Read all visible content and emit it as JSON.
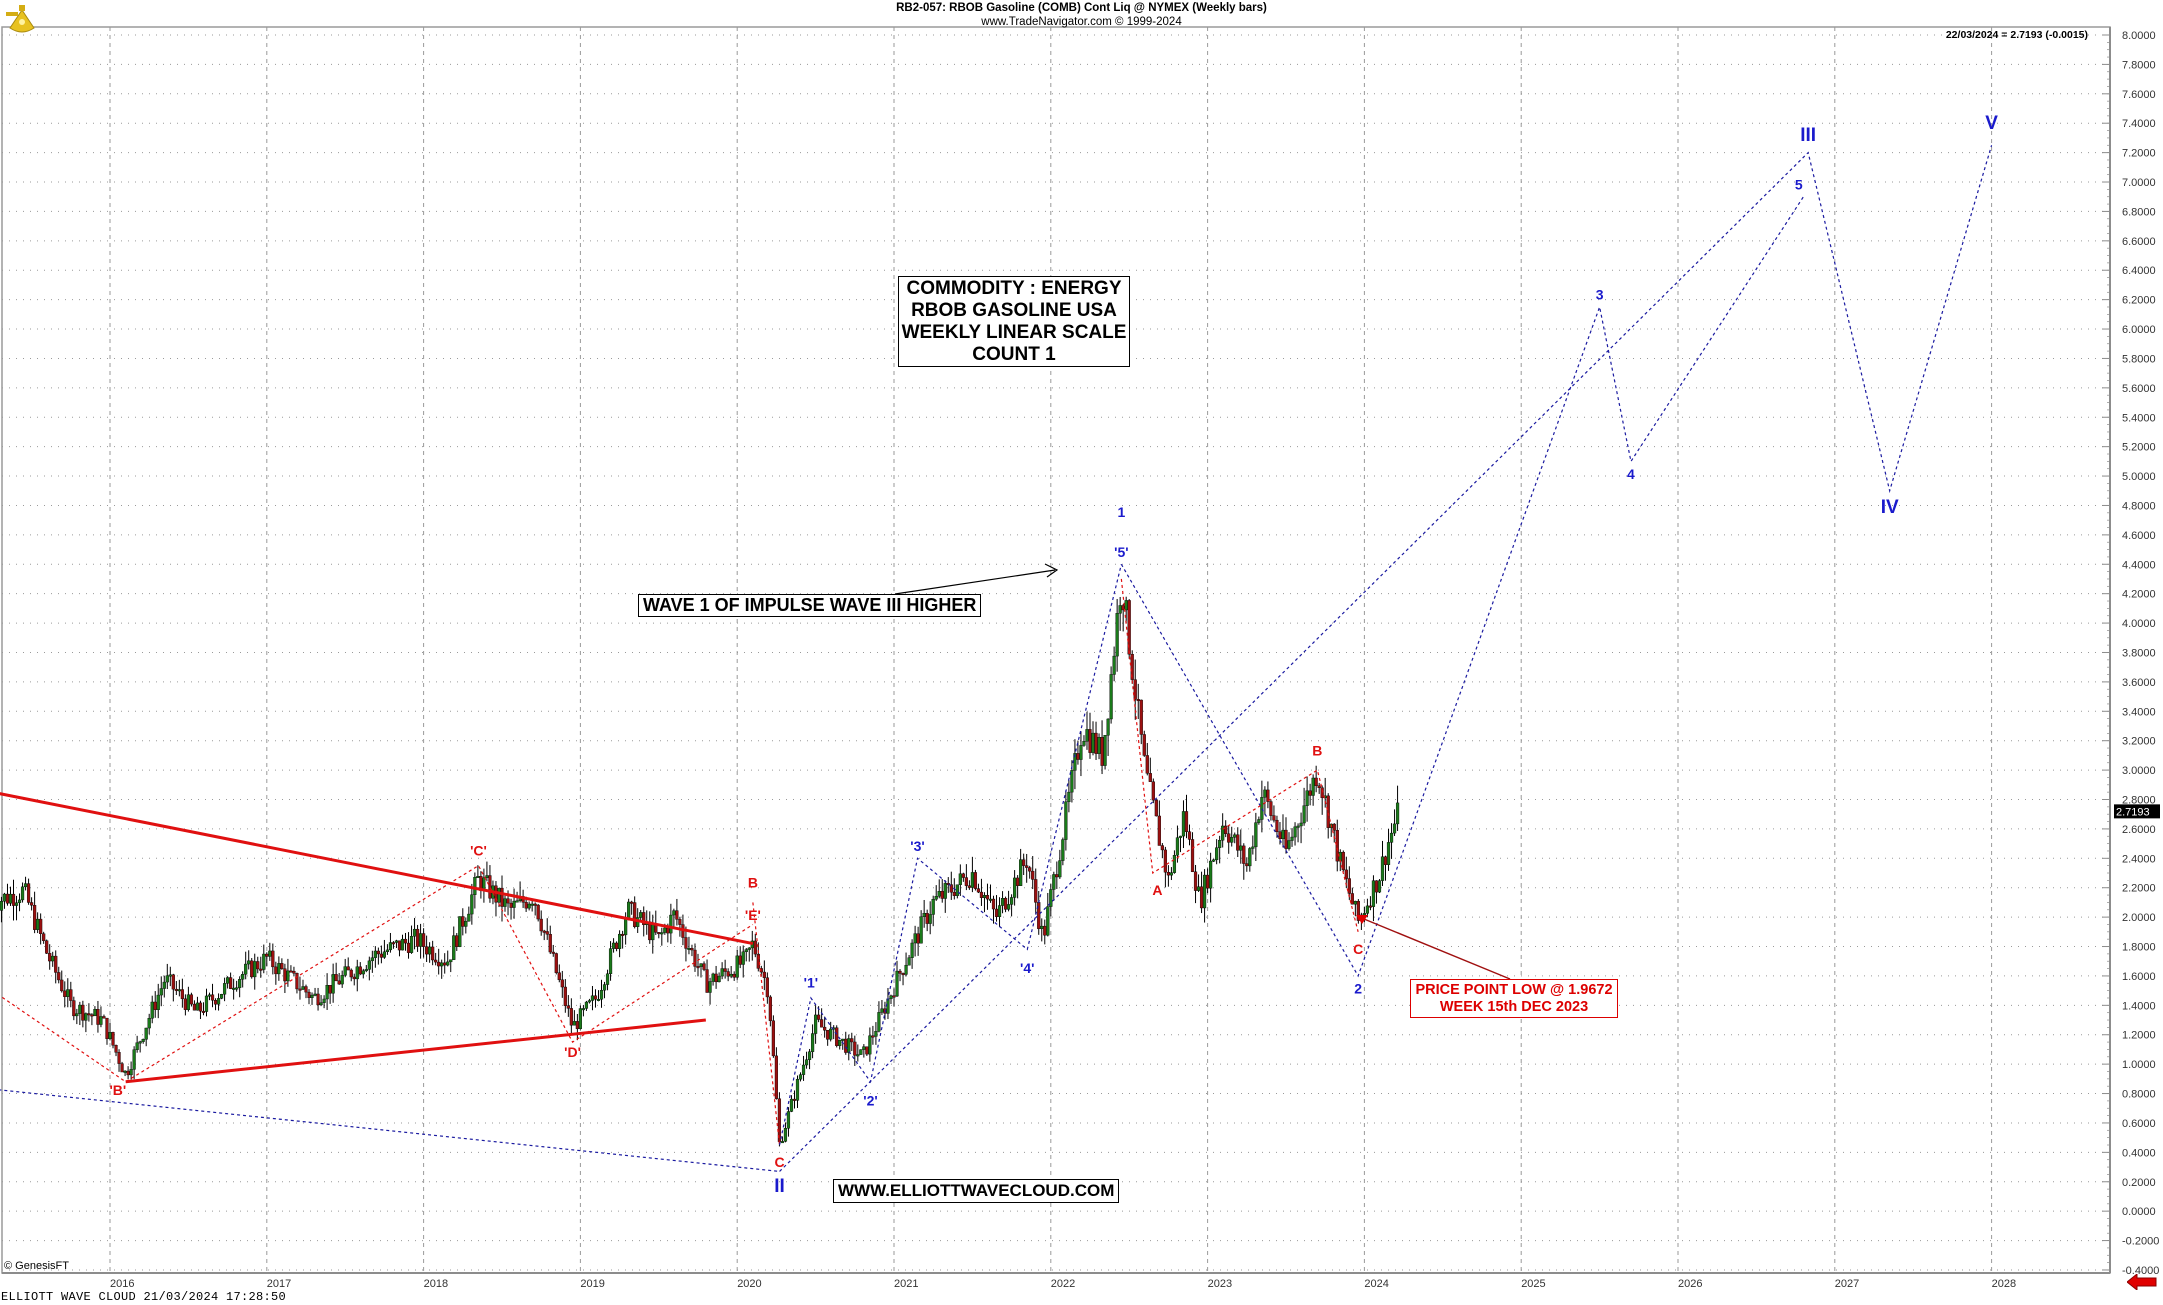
{
  "header": {
    "title": "RB2-057:  RBOB Gasoline (COMB) Cont Liq @ NYMEX  (Weekly bars)",
    "subtitle": "www.TradeNavigator.com © 1999-2024",
    "last_price_caption": "22/03/2024 = 2.7193 (-0.0015)"
  },
  "footer": {
    "left_text": "ELLIOTT WAVE CLOUD   21/03/2024 17:28:50",
    "copyright": "© GenesisFT"
  },
  "annotations": {
    "info_box": [
      "COMMODITY : ENERGY",
      "RBOB GASOLINE USA",
      "WEEKLY LINEAR SCALE",
      "COUNT 1"
    ],
    "wave1_note": "WAVE 1 OF IMPULSE WAVE III HIGHER",
    "website": "WWW.ELLIOTTWAVECLOUD.COM",
    "low_note": [
      "PRICE POINT LOW @ 1.9672",
      "WEEK 15th DEC 2023"
    ]
  },
  "colors": {
    "up_candle": "#1a7a1a",
    "down_candle": "#9b1010",
    "wick": "#000000",
    "red_lines": "#e01010",
    "blue_lines": "#1a1aa0",
    "blue_labels": "#1a1acc",
    "red_labels": "#e01010",
    "grid": "#9a9a9a",
    "axis": "#8c8c8c"
  },
  "chart_data": {
    "type": "candlestick",
    "title": "RB2-057:  RBOB Gasoline (COMB) Cont Liq @ NYMEX  (Weekly bars)",
    "xlabel": "",
    "ylabel": "",
    "ylim": [
      -0.4,
      8.0
    ],
    "y_ticks": [
      "8.0000",
      "7.8000",
      "7.6000",
      "7.4000",
      "7.2000",
      "7.0000",
      "6.8000",
      "6.6000",
      "6.4000",
      "6.2000",
      "6.0000",
      "5.8000",
      "5.6000",
      "5.4000",
      "5.2000",
      "5.0000",
      "4.8000",
      "4.6000",
      "4.4000",
      "4.2000",
      "4.0000",
      "3.8000",
      "3.6000",
      "3.4000",
      "3.2000",
      "3.0000",
      "2.8000",
      "2.6000",
      "2.4000",
      "2.2000",
      "2.0000",
      "1.8000",
      "1.6000",
      "1.4000",
      "1.2000",
      "1.0000",
      "0.8000",
      "0.6000",
      "0.4000",
      "0.2000",
      "0.0000",
      "-0.2000",
      "-0.4000"
    ],
    "x_ticks": [
      "2016",
      "2017",
      "2018",
      "2019",
      "2020",
      "2021",
      "2022",
      "2023",
      "2024",
      "2025",
      "2026",
      "2027",
      "2028"
    ],
    "grid": true,
    "last_price": 2.7193,
    "last_change": -0.0015,
    "last_date": "22/03/2024",
    "price_swings": [
      {
        "t": 2015.25,
        "v": 2.1
      },
      {
        "t": 2015.45,
        "v": 2.18
      },
      {
        "t": 2015.6,
        "v": 1.75
      },
      {
        "t": 2015.75,
        "v": 1.4
      },
      {
        "t": 2015.95,
        "v": 1.3
      },
      {
        "t": 2016.1,
        "v": 0.93
      },
      {
        "t": 2016.35,
        "v": 1.58
      },
      {
        "t": 2016.55,
        "v": 1.35
      },
      {
        "t": 2016.8,
        "v": 1.58
      },
      {
        "t": 2017.0,
        "v": 1.72
      },
      {
        "t": 2017.3,
        "v": 1.45
      },
      {
        "t": 2017.7,
        "v": 1.75
      },
      {
        "t": 2017.95,
        "v": 1.85
      },
      {
        "t": 2018.15,
        "v": 1.7
      },
      {
        "t": 2018.35,
        "v": 2.26
      },
      {
        "t": 2018.55,
        "v": 2.05
      },
      {
        "t": 2018.7,
        "v": 2.15
      },
      {
        "t": 2018.95,
        "v": 1.25
      },
      {
        "t": 2019.1,
        "v": 1.45
      },
      {
        "t": 2019.3,
        "v": 2.05
      },
      {
        "t": 2019.5,
        "v": 1.85
      },
      {
        "t": 2019.6,
        "v": 2.02
      },
      {
        "t": 2019.8,
        "v": 1.55
      },
      {
        "t": 2020.05,
        "v": 1.7
      },
      {
        "t": 2020.1,
        "v": 1.82
      },
      {
        "t": 2020.2,
        "v": 1.5
      },
      {
        "t": 2020.27,
        "v": 0.45
      },
      {
        "t": 2020.5,
        "v": 1.28
      },
      {
        "t": 2020.8,
        "v": 1.05
      },
      {
        "t": 2021.05,
        "v": 1.65
      },
      {
        "t": 2021.25,
        "v": 2.1
      },
      {
        "t": 2021.5,
        "v": 2.3
      },
      {
        "t": 2021.65,
        "v": 2.0
      },
      {
        "t": 2021.85,
        "v": 2.4
      },
      {
        "t": 2021.95,
        "v": 1.85
      },
      {
        "t": 2022.15,
        "v": 3.0
      },
      {
        "t": 2022.2,
        "v": 3.3
      },
      {
        "t": 2022.33,
        "v": 3.1
      },
      {
        "t": 2022.45,
        "v": 4.3
      },
      {
        "t": 2022.6,
        "v": 3.0
      },
      {
        "t": 2022.75,
        "v": 2.25
      },
      {
        "t": 2022.85,
        "v": 2.7
      },
      {
        "t": 2022.95,
        "v": 2.1
      },
      {
        "t": 2023.1,
        "v": 2.65
      },
      {
        "t": 2023.25,
        "v": 2.35
      },
      {
        "t": 2023.35,
        "v": 2.85
      },
      {
        "t": 2023.5,
        "v": 2.45
      },
      {
        "t": 2023.7,
        "v": 3.0
      },
      {
        "t": 2023.85,
        "v": 2.35
      },
      {
        "t": 2023.96,
        "v": 1.9672
      },
      {
        "t": 2024.1,
        "v": 2.3
      },
      {
        "t": 2024.15,
        "v": 2.5
      },
      {
        "t": 2024.22,
        "v": 2.7193
      }
    ],
    "series": [
      {
        "name": "Red contracting triangle upper line",
        "style": "solid-red",
        "points": [
          {
            "t": 2015.25,
            "v": 2.85
          },
          {
            "t": 2020.1,
            "v": 1.82
          }
        ]
      },
      {
        "name": "Red contracting triangle lower line",
        "style": "solid-red",
        "points": [
          {
            "t": 2016.1,
            "v": 0.88
          },
          {
            "t": 2019.8,
            "v": 1.3
          }
        ]
      },
      {
        "name": "Blue base channel line",
        "style": "dotted-blue",
        "points": [
          {
            "t": 2015.25,
            "v": 0.83
          },
          {
            "t": 2020.27,
            "v": 0.27
          }
        ]
      },
      {
        "name": "Red triangle internal waves",
        "style": "dotted-red",
        "points": [
          {
            "t": 2015.25,
            "v": 1.5
          },
          {
            "t": 2016.1,
            "v": 0.88
          },
          {
            "t": 2018.35,
            "v": 2.35
          },
          {
            "t": 2018.95,
            "v": 1.15
          },
          {
            "t": 2020.1,
            "v": 1.95
          }
        ]
      },
      {
        "name": "Red ABC",
        "style": "dotted-red",
        "points": [
          {
            "t": 2020.1,
            "v": 2.1
          },
          {
            "t": 2020.27,
            "v": 0.45
          }
        ]
      },
      {
        "name": "Blue sub-waves '1'-'5'",
        "style": "dotted-blue",
        "points": [
          {
            "t": 2020.27,
            "v": 0.45
          },
          {
            "t": 2020.47,
            "v": 1.45
          },
          {
            "t": 2020.85,
            "v": 0.88
          },
          {
            "t": 2021.15,
            "v": 2.4
          },
          {
            "t": 2021.85,
            "v": 1.78
          },
          {
            "t": 2022.45,
            "v": 4.4
          }
        ]
      },
      {
        "name": "Blue wave 1-2 projection",
        "style": "dotted-blue",
        "points": [
          {
            "t": 2022.45,
            "v": 4.4
          },
          {
            "t": 2023.96,
            "v": 1.6
          },
          {
            "t": 2025.5,
            "v": 6.15
          },
          {
            "t": 2025.7,
            "v": 5.1
          },
          {
            "t": 2026.8,
            "v": 6.9
          }
        ]
      },
      {
        "name": "Blue wave III-IV-V projection",
        "style": "dotted-blue",
        "points": [
          {
            "t": 2020.27,
            "v": 0.27
          },
          {
            "t": 2026.83,
            "v": 7.2
          },
          {
            "t": 2027.35,
            "v": 4.9
          },
          {
            "t": 2028.0,
            "v": 7.25
          }
        ]
      },
      {
        "name": "Red A-B-C 2022-2023",
        "style": "dotted-red",
        "points": [
          {
            "t": 2022.45,
            "v": 4.3
          },
          {
            "t": 2022.65,
            "v": 2.3
          },
          {
            "t": 2023.7,
            "v": 3.0
          },
          {
            "t": 2023.96,
            "v": 1.9
          }
        ]
      }
    ],
    "wave_labels": [
      {
        "text": "'B'",
        "t": 2016.05,
        "v": 0.79,
        "color": "red"
      },
      {
        "text": "'C'",
        "t": 2018.35,
        "v": 2.42,
        "color": "red"
      },
      {
        "text": "'D'",
        "t": 2018.95,
        "v": 1.05,
        "color": "red"
      },
      {
        "text": "B",
        "t": 2020.1,
        "v": 2.2,
        "color": "red"
      },
      {
        "text": "'E'",
        "t": 2020.1,
        "v": 1.98,
        "color": "red"
      },
      {
        "text": "C",
        "t": 2020.27,
        "v": 0.3,
        "color": "red"
      },
      {
        "text": "II",
        "t": 2020.27,
        "v": 0.13,
        "color": "blue",
        "big": true
      },
      {
        "text": "'1'",
        "t": 2020.47,
        "v": 1.52,
        "color": "blue"
      },
      {
        "text": "'2'",
        "t": 2020.85,
        "v": 0.72,
        "color": "blue"
      },
      {
        "text": "'3'",
        "t": 2021.15,
        "v": 2.45,
        "color": "blue"
      },
      {
        "text": "'4'",
        "t": 2021.85,
        "v": 1.62,
        "color": "blue"
      },
      {
        "text": "'5'",
        "t": 2022.45,
        "v": 4.45,
        "color": "blue"
      },
      {
        "text": "1",
        "t": 2022.45,
        "v": 4.72,
        "color": "blue"
      },
      {
        "text": "A",
        "t": 2022.68,
        "v": 2.15,
        "color": "red"
      },
      {
        "text": "B",
        "t": 2023.7,
        "v": 3.1,
        "color": "red"
      },
      {
        "text": "C",
        "t": 2023.96,
        "v": 1.75,
        "color": "red"
      },
      {
        "text": "2",
        "t": 2023.96,
        "v": 1.48,
        "color": "blue"
      },
      {
        "text": "3",
        "t": 2025.5,
        "v": 6.2,
        "color": "blue"
      },
      {
        "text": "4",
        "t": 2025.7,
        "v": 4.98,
        "color": "blue"
      },
      {
        "text": "5",
        "t": 2026.77,
        "v": 6.95,
        "color": "blue"
      },
      {
        "text": "III",
        "t": 2026.83,
        "v": 7.28,
        "color": "blue",
        "big": true
      },
      {
        "text": "IV",
        "t": 2027.35,
        "v": 4.75,
        "color": "blue",
        "big": true
      },
      {
        "text": "V",
        "t": 2028.0,
        "v": 7.36,
        "color": "blue",
        "big": true
      }
    ]
  }
}
